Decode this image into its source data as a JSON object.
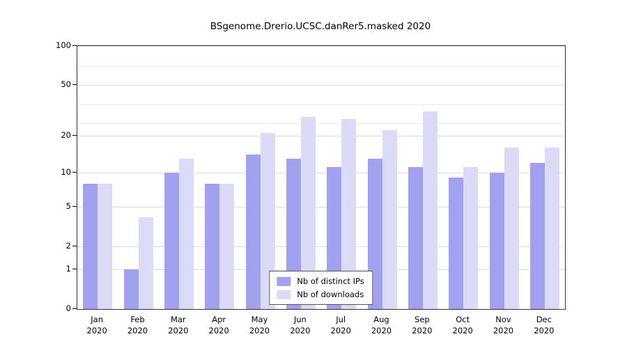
{
  "colors": {
    "ips": "#a1a1f0",
    "downloads": "#dbdbf8",
    "grid_major": "#d9d9d9",
    "grid_minor": "#ebebeb",
    "axis": "#000000"
  },
  "legend": {
    "items": [
      {
        "label": "Nb of distinct IPs",
        "series": "ips"
      },
      {
        "label": "Nb of downloads",
        "series": "downloads"
      }
    ]
  },
  "y_axis": {
    "ticks": [
      0,
      1,
      2,
      5,
      10,
      20,
      50,
      100
    ],
    "minor_gridlines": [
      25,
      35,
      70
    ],
    "scale": "log1p"
  },
  "x_axis": {
    "year_label": "2020"
  },
  "chart_data": {
    "type": "bar",
    "title": "BSgenome.Drerio.UCSC.danRer5.masked 2020",
    "categories": [
      "Jan",
      "Feb",
      "Mar",
      "Apr",
      "May",
      "Jun",
      "Jul",
      "Aug",
      "Sep",
      "Oct",
      "Nov",
      "Dec"
    ],
    "category_year": "2020",
    "series": [
      {
        "name": "Nb of distinct IPs",
        "values": [
          8,
          1,
          10,
          8,
          14,
          13,
          11,
          13,
          11,
          9,
          10,
          12
        ]
      },
      {
        "name": "Nb of downloads",
        "values": [
          8,
          4,
          13,
          8,
          21,
          28,
          27,
          22,
          31,
          11,
          16,
          16
        ]
      }
    ],
    "xlabel": "",
    "ylabel": "",
    "ylim": [
      0,
      100
    ],
    "y_ticks": [
      0,
      1,
      2,
      5,
      10,
      20,
      50,
      100
    ],
    "legend_position": "bottom-center",
    "grid": true
  }
}
